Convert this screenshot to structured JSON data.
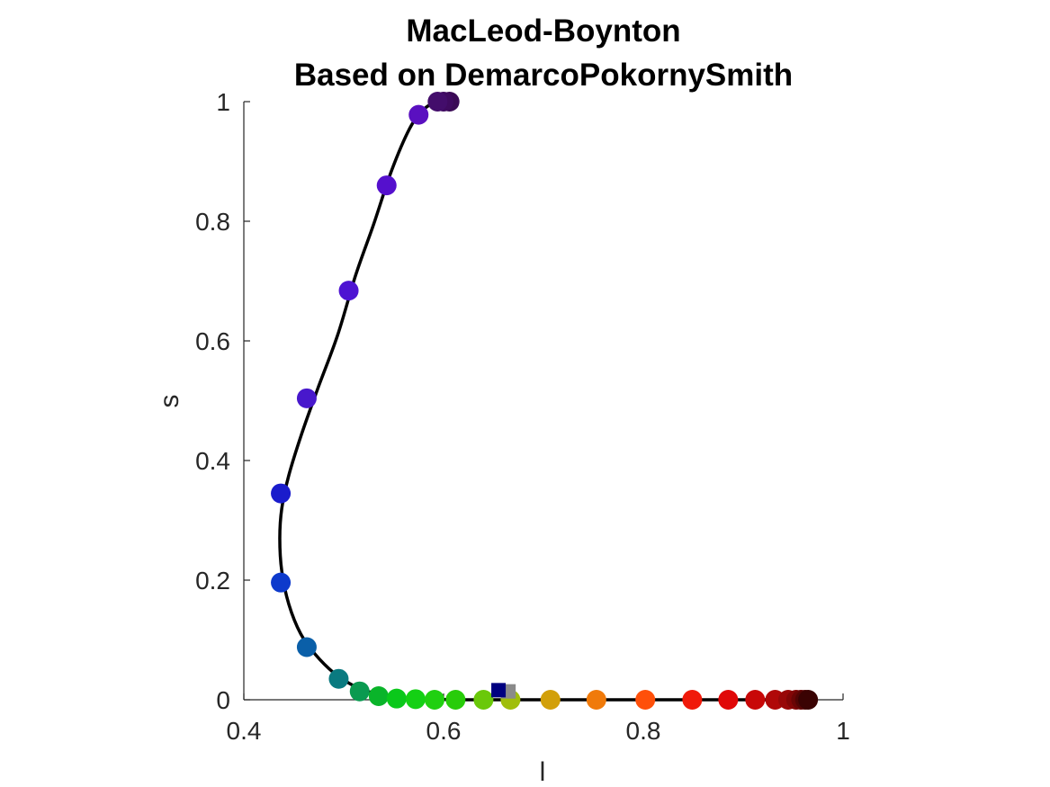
{
  "chart_data": {
    "type": "scatter",
    "title": "MacLeod-Boynton",
    "subtitle": "Based on DemarcoPokornySmith",
    "xlabel": "l",
    "ylabel": "s",
    "xlim": [
      0.4,
      1.0
    ],
    "ylim": [
      0,
      1.0
    ],
    "xticks": [
      "0.4",
      "0.6",
      "0.8",
      "1"
    ],
    "yticks": [
      "0",
      "0.2",
      "0.4",
      "0.6",
      "0.8",
      "1"
    ],
    "grid": false,
    "locus_color": "#000000",
    "locus": [
      [
        0.606,
        1.0
      ],
      [
        0.598,
        0.999
      ],
      [
        0.589,
        0.997
      ],
      [
        0.579,
        0.985
      ],
      [
        0.566,
        0.955
      ],
      [
        0.548,
        0.885
      ],
      [
        0.53,
        0.795
      ],
      [
        0.512,
        0.71
      ],
      [
        0.494,
        0.61
      ],
      [
        0.474,
        0.52
      ],
      [
        0.458,
        0.445
      ],
      [
        0.445,
        0.375
      ],
      [
        0.438,
        0.32
      ],
      [
        0.436,
        0.27
      ],
      [
        0.438,
        0.215
      ],
      [
        0.445,
        0.16
      ],
      [
        0.457,
        0.11
      ],
      [
        0.472,
        0.075
      ],
      [
        0.49,
        0.045
      ],
      [
        0.505,
        0.028
      ],
      [
        0.52,
        0.016
      ],
      [
        0.54,
        0.008
      ],
      [
        0.56,
        0.003
      ],
      [
        0.6,
        0.0005
      ],
      [
        0.65,
        0.0
      ],
      [
        0.965,
        0.0
      ]
    ],
    "points": [
      {
        "x": 0.606,
        "y": 1.0,
        "color": "#3a0a55"
      },
      {
        "x": 0.6,
        "y": 1.0,
        "color": "#3f0a60"
      },
      {
        "x": 0.594,
        "y": 1.0,
        "color": "#430d6b"
      },
      {
        "x": 0.575,
        "y": 0.978,
        "color": "#5a10c0"
      },
      {
        "x": 0.543,
        "y": 0.86,
        "color": "#5510cd"
      },
      {
        "x": 0.505,
        "y": 0.684,
        "color": "#4e14d2"
      },
      {
        "x": 0.463,
        "y": 0.504,
        "color": "#4818cc"
      },
      {
        "x": 0.437,
        "y": 0.345,
        "color": "#1a1ccc"
      },
      {
        "x": 0.437,
        "y": 0.196,
        "color": "#0d3acc"
      },
      {
        "x": 0.463,
        "y": 0.088,
        "color": "#0a5fa8"
      },
      {
        "x": 0.495,
        "y": 0.035,
        "color": "#0a7a80"
      },
      {
        "x": 0.516,
        "y": 0.014,
        "color": "#0a9a50"
      },
      {
        "x": 0.535,
        "y": 0.006,
        "color": "#0ab42a"
      },
      {
        "x": 0.553,
        "y": 0.002,
        "color": "#0ac81a"
      },
      {
        "x": 0.572,
        "y": 0.001,
        "color": "#14d014"
      },
      {
        "x": 0.591,
        "y": 0.0,
        "color": "#20d010"
      },
      {
        "x": 0.612,
        "y": 0.0,
        "color": "#28cc0a"
      },
      {
        "x": 0.64,
        "y": 0.0,
        "color": "#6ac80a"
      },
      {
        "x": 0.667,
        "y": 0.0,
        "color": "#a0be0a"
      },
      {
        "x": 0.707,
        "y": 0.0,
        "color": "#d2a00a"
      },
      {
        "x": 0.753,
        "y": 0.0,
        "color": "#f07a0a"
      },
      {
        "x": 0.802,
        "y": 0.0,
        "color": "#ff500a"
      },
      {
        "x": 0.849,
        "y": 0.0,
        "color": "#f01a0a"
      },
      {
        "x": 0.885,
        "y": 0.0,
        "color": "#e00808"
      },
      {
        "x": 0.912,
        "y": 0.0,
        "color": "#c80808"
      },
      {
        "x": 0.932,
        "y": 0.0,
        "color": "#b00808"
      },
      {
        "x": 0.945,
        "y": 0.0,
        "color": "#980808"
      },
      {
        "x": 0.953,
        "y": 0.0,
        "color": "#820606"
      },
      {
        "x": 0.958,
        "y": 0.0,
        "color": "#6a0505"
      },
      {
        "x": 0.962,
        "y": 0.0,
        "color": "#520404"
      },
      {
        "x": 0.965,
        "y": 0.0,
        "color": "#3a0303"
      }
    ],
    "markers": [
      {
        "shape": "square",
        "x": 0.665,
        "y": 0.014,
        "color": "#8a8a8a"
      },
      {
        "shape": "square",
        "x": 0.655,
        "y": 0.016,
        "color": "#000080"
      }
    ]
  }
}
